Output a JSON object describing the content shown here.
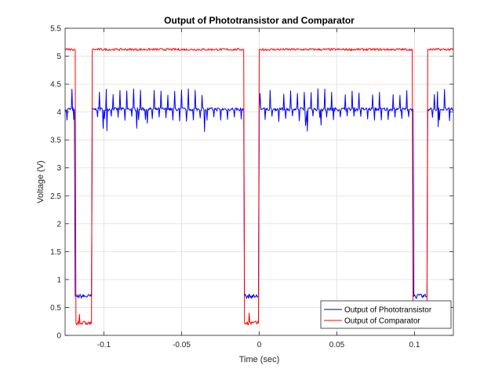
{
  "chart_data": {
    "type": "line",
    "title": "Output of Phototransistor and Comparator",
    "xlabel": "Time (sec)",
    "ylabel": "Voltage (V)",
    "xlim": [
      -0.125,
      0.125
    ],
    "ylim": [
      0,
      5.5
    ],
    "x_ticks": [
      -0.1,
      -0.05,
      0,
      0.05,
      0.1
    ],
    "x_tick_labels": [
      "-0.1",
      "-0.05",
      "0",
      "0.05",
      "0.1"
    ],
    "y_ticks": [
      0,
      0.5,
      1,
      1.5,
      2,
      2.5,
      3,
      3.5,
      4,
      4.5,
      5,
      5.5
    ],
    "y_tick_labels": [
      "0",
      "0.5",
      "1",
      "1.5",
      "2",
      "2.5",
      "3",
      "3.5",
      "4",
      "4.5",
      "5",
      "5.5"
    ],
    "grid": true,
    "legend_position": "bottom-right",
    "series": [
      {
        "name": "Output of Phototransistor",
        "color": "#0000ff",
        "legend_color": "#000080",
        "x": [
          -0.125,
          -0.119,
          -0.1185,
          -0.1175,
          -0.108,
          -0.1075,
          -0.1065,
          -0.01,
          -0.0095,
          -0.0085,
          -0.0005,
          0.0,
          0.001,
          0.099,
          0.0995,
          0.1005,
          0.108,
          0.1085,
          0.1095,
          0.125
        ],
        "y": [
          4.05,
          4.05,
          0.7,
          0.7,
          0.7,
          4.05,
          4.05,
          4.05,
          0.7,
          0.7,
          0.7,
          4.05,
          4.05,
          4.05,
          0.7,
          0.7,
          0.7,
          4.05,
          4.05,
          4.05
        ],
        "spikes": "periodic noise approx. 3.9 to 4.4 V on the high level"
      },
      {
        "name": "Output of Comparator",
        "color": "#ff0000",
        "legend_color": "#ff0000",
        "x": [
          -0.125,
          -0.1185,
          -0.118,
          -0.117,
          -0.108,
          -0.1075,
          -0.1065,
          -0.01,
          -0.0095,
          -0.0085,
          -0.0005,
          0.0,
          0.001,
          0.0985,
          0.099,
          0.1,
          0.108,
          0.1085,
          0.1095,
          0.125
        ],
        "y": [
          5.12,
          5.12,
          0.22,
          0.22,
          0.22,
          5.12,
          5.12,
          5.12,
          0.22,
          0.22,
          0.22,
          5.12,
          5.12,
          5.12,
          0.22,
          0.22,
          0.22,
          5.12,
          5.12,
          5.12
        ]
      }
    ]
  }
}
